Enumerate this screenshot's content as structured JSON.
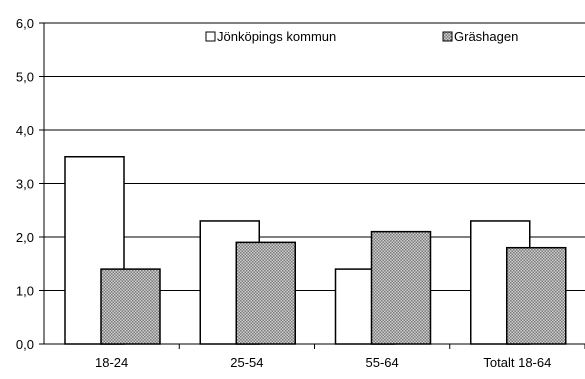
{
  "chart_data": {
    "type": "bar",
    "categories": [
      "18-24",
      "25-54",
      "55-64",
      "Totalt 18-64"
    ],
    "series": [
      {
        "name": "Jönköpings kommun",
        "values": [
          3.5,
          2.3,
          1.4,
          2.3
        ],
        "color": "#ffffff"
      },
      {
        "name": "Gräshagen",
        "values": [
          1.4,
          1.9,
          2.1,
          1.8
        ],
        "color": "#a8a8a8"
      }
    ],
    "ylim": [
      0,
      6
    ],
    "yticks": [
      "0,0",
      "1,0",
      "2,0",
      "3,0",
      "4,0",
      "5,0",
      "6,0"
    ],
    "grid": true,
    "legend_position": "top-right",
    "title": "",
    "xlabel": "",
    "ylabel": ""
  }
}
